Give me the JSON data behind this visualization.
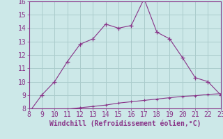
{
  "x_main": [
    8,
    9,
    10,
    11,
    12,
    13,
    14,
    15,
    16,
    17,
    18,
    19,
    20,
    21,
    22,
    23
  ],
  "y_main": [
    7.7,
    9.0,
    10.0,
    11.5,
    12.8,
    13.2,
    14.3,
    14.0,
    14.2,
    16.2,
    13.7,
    13.2,
    11.8,
    10.3,
    10.0,
    9.0
  ],
  "x_secondary": [
    8,
    9,
    10,
    11,
    12,
    13,
    14,
    15,
    16,
    17,
    18,
    19,
    20,
    21,
    22,
    23
  ],
  "y_secondary": [
    7.7,
    7.85,
    7.9,
    7.95,
    8.05,
    8.15,
    8.25,
    8.4,
    8.5,
    8.6,
    8.7,
    8.8,
    8.9,
    8.95,
    9.05,
    9.1
  ],
  "line_color": "#883388",
  "bg_color": "#cce8e8",
  "grid_color": "#aacccc",
  "xlabel": "Windchill (Refroidissement éolien,°C)",
  "xlim": [
    8,
    23
  ],
  "ylim": [
    8,
    16
  ],
  "xticks": [
    8,
    9,
    10,
    11,
    12,
    13,
    14,
    15,
    16,
    17,
    18,
    19,
    20,
    21,
    22,
    23
  ],
  "yticks": [
    8,
    9,
    10,
    11,
    12,
    13,
    14,
    15,
    16
  ],
  "tick_label_color": "#883388",
  "xlabel_color": "#883388",
  "xlabel_fontsize": 7.0,
  "tick_fontsize": 7.0
}
